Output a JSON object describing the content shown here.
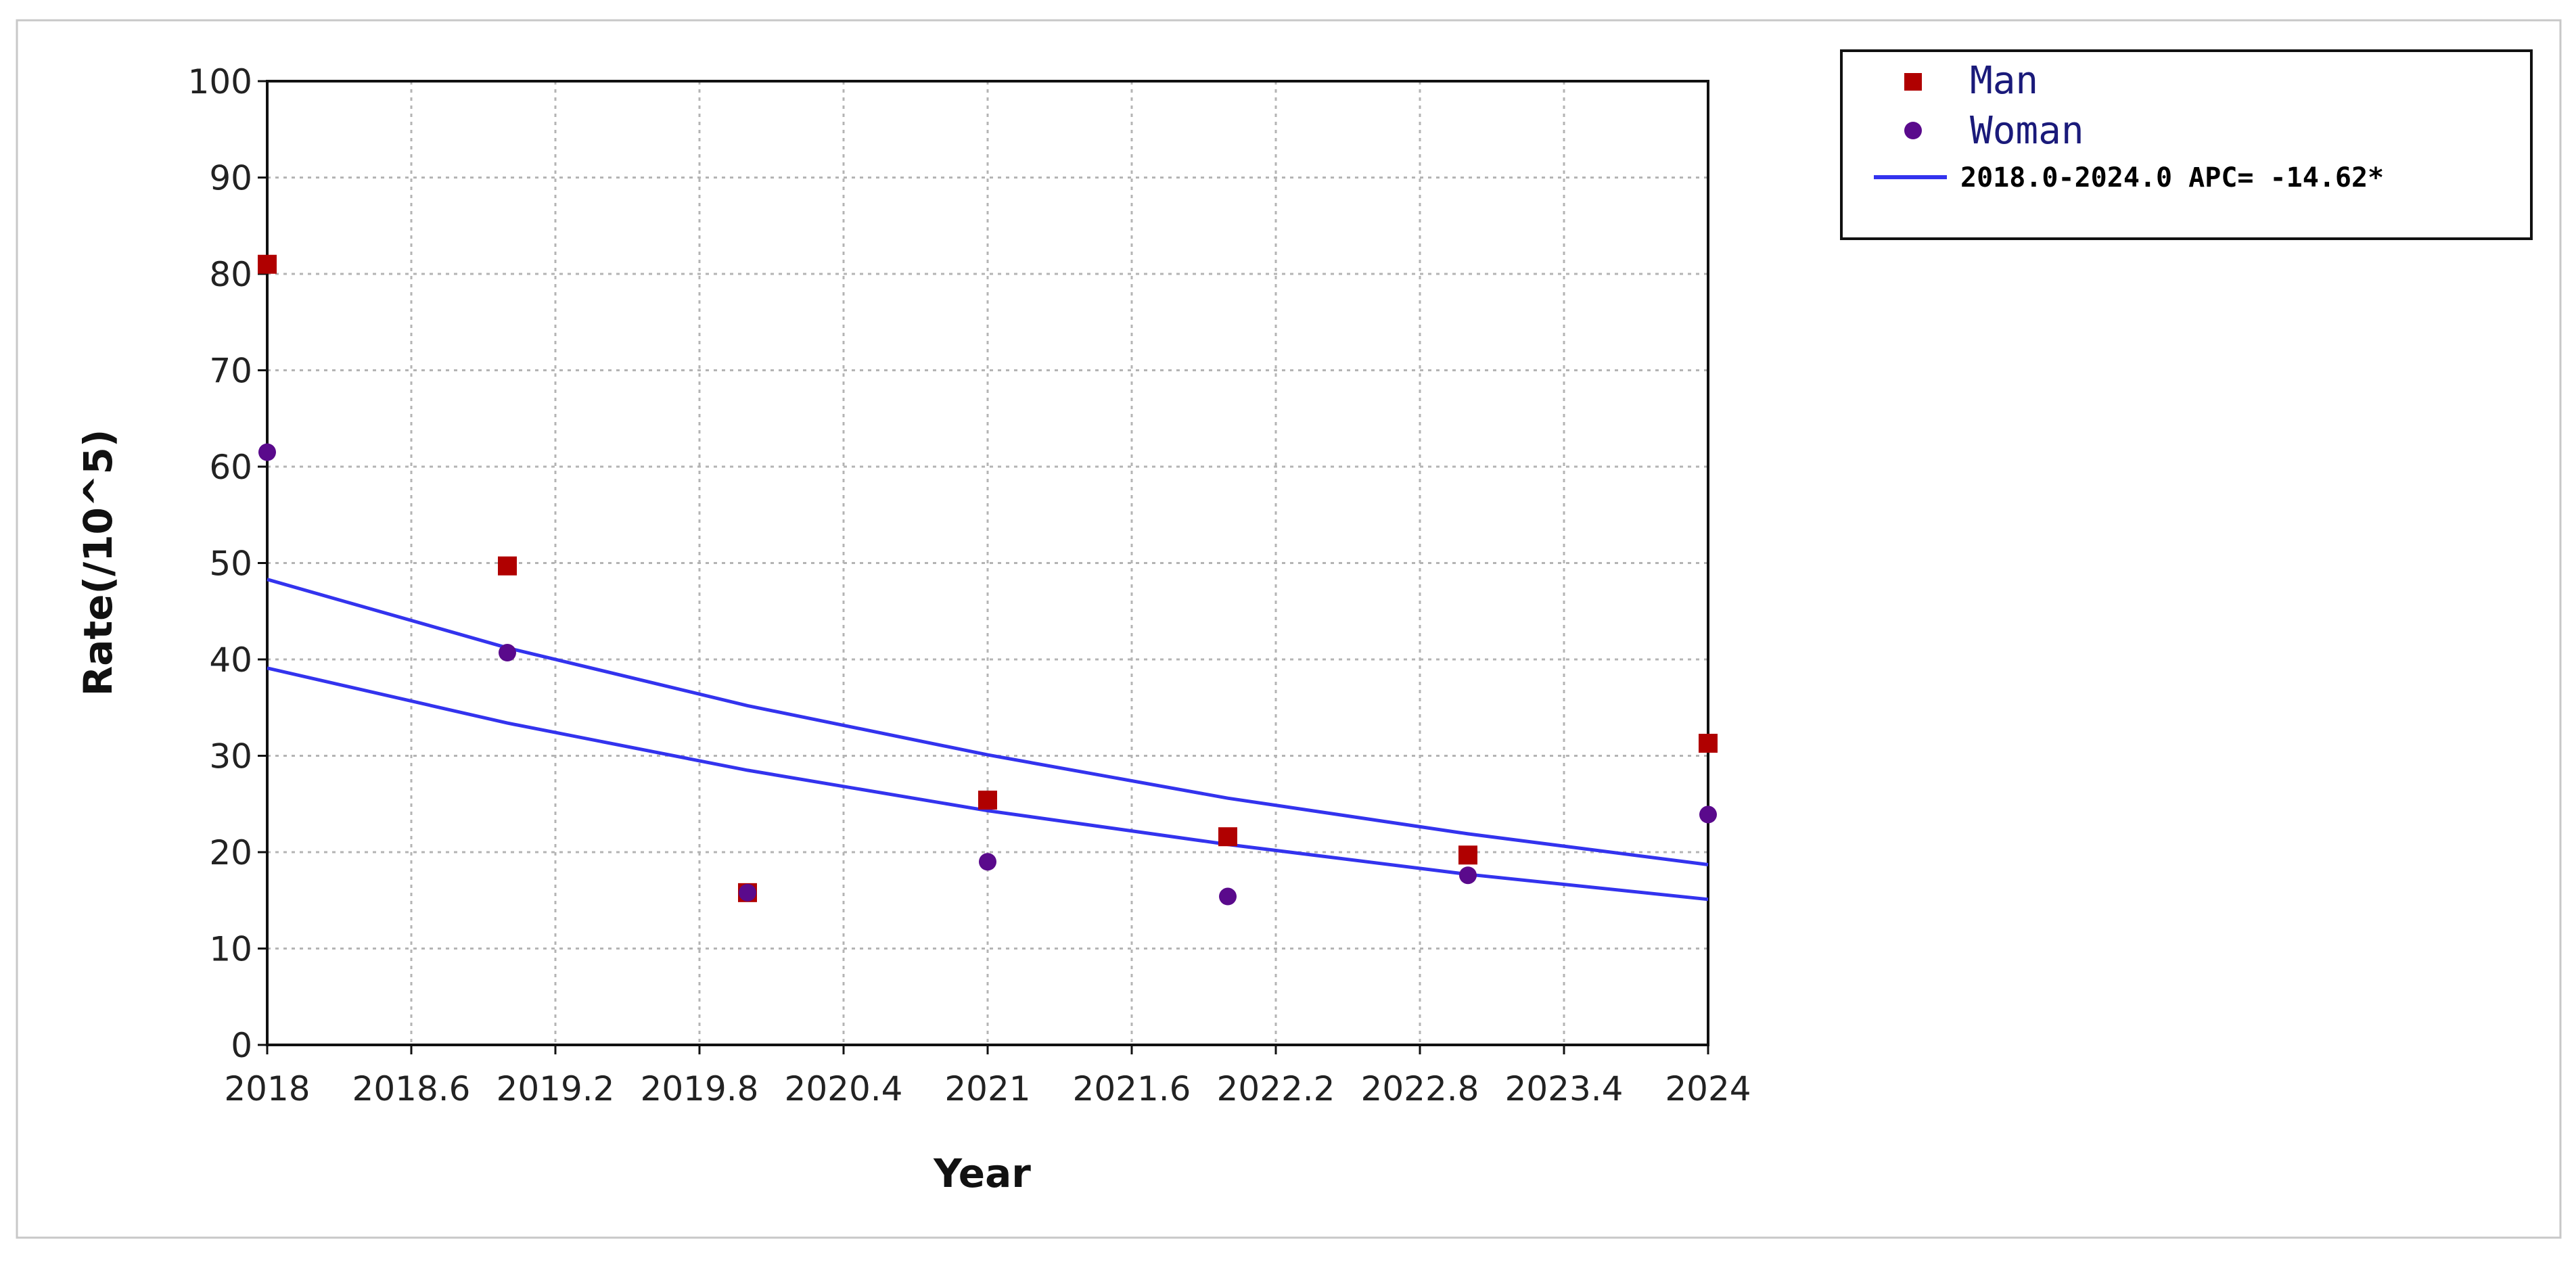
{
  "chart_data": {
    "type": "scatter",
    "title": "",
    "xlabel": "Year",
    "ylabel": "Rate(/10^5)",
    "xlim": [
      2018,
      2024
    ],
    "ylim": [
      0,
      100
    ],
    "x_ticks": [
      "2018",
      "2018.6",
      "2019.2",
      "2019.8",
      "2020.4",
      "2021",
      "2021.6",
      "2022.2",
      "2022.8",
      "2023.4",
      "2024"
    ],
    "y_ticks": [
      "0",
      "10",
      "20",
      "30",
      "40",
      "50",
      "60",
      "70",
      "80",
      "90",
      "100"
    ],
    "grid": true,
    "legend_position": "outside-top-right",
    "series": [
      {
        "name": "Man",
        "marker": "square",
        "color": "#b00000",
        "x": [
          2018,
          2019,
          2020,
          2021,
          2022,
          2023,
          2024
        ],
        "y": [
          81,
          49.7,
          15.8,
          25.4,
          21.6,
          19.7,
          31.3
        ]
      },
      {
        "name": "Woman",
        "marker": "circle",
        "color": "#5a0a8c",
        "x": [
          2018,
          2019,
          2020,
          2021,
          2022,
          2023,
          2024
        ],
        "y": [
          61.5,
          40.7,
          15.8,
          19,
          15.4,
          17.6,
          23.9
        ]
      }
    ],
    "fitted_lines": [
      {
        "legend_label": "2018.0-2024.0 APC= -14.62*",
        "color": "#3333ee",
        "x": [
          2018,
          2019,
          2020,
          2021,
          2022,
          2023,
          2024
        ],
        "y": [
          48.3,
          41.2,
          35.2,
          30.1,
          25.6,
          21.9,
          18.7
        ]
      },
      {
        "legend_label": "",
        "color": "#3333ee",
        "x": [
          2018,
          2019,
          2020,
          2021,
          2022,
          2023,
          2024
        ],
        "y": [
          39.1,
          33.4,
          28.5,
          24.3,
          20.8,
          17.7,
          15.1
        ]
      }
    ]
  }
}
